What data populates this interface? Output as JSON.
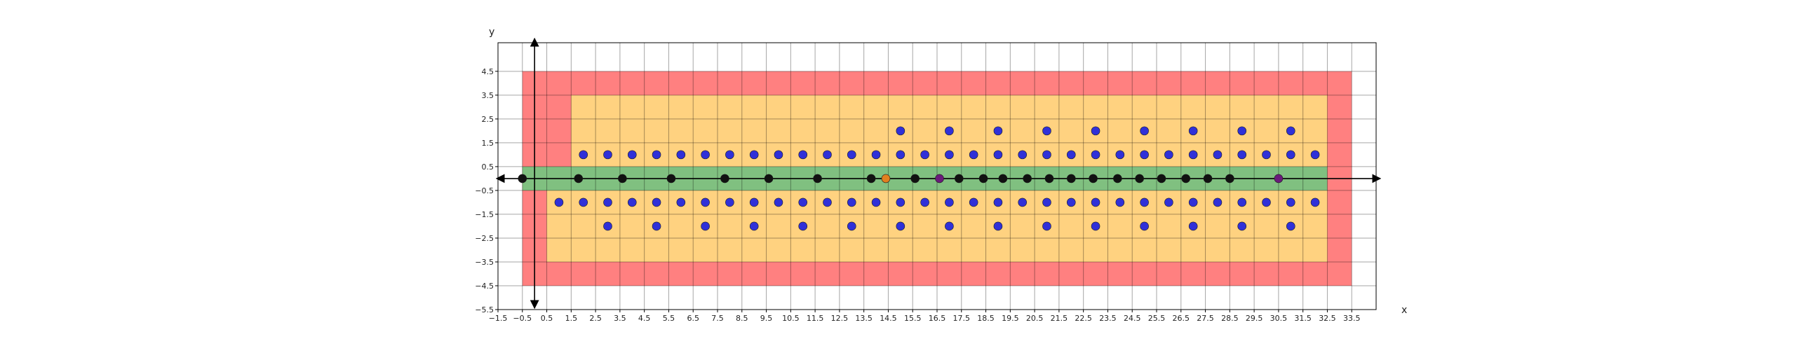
{
  "chart_data": {
    "type": "scatter",
    "title": "",
    "xlabel": "x",
    "ylabel": "y",
    "xlim": [
      -1.5,
      34.5
    ],
    "ylim": [
      -5.5,
      5.7
    ],
    "grid": true,
    "x_ticks": [
      "-1.5",
      "-0.5",
      "0.5",
      "1.5",
      "2.5",
      "3.5",
      "4.5",
      "5.5",
      "6.5",
      "7.5",
      "8.5",
      "9.5",
      "10.5",
      "11.5",
      "12.5",
      "13.5",
      "14.5",
      "15.5",
      "16.5",
      "17.5",
      "18.5",
      "19.5",
      "20.5",
      "21.5",
      "22.5",
      "23.5",
      "24.5",
      "25.5",
      "26.5",
      "27.5",
      "28.5",
      "29.5",
      "30.5",
      "31.5",
      "32.5",
      "33.5"
    ],
    "y_ticks": [
      "4.5",
      "3.5",
      "2.5",
      "1.5",
      "0.5",
      "-0.5",
      "-1.5",
      "-2.5",
      "-3.5",
      "-4.5",
      "-5.5"
    ],
    "regions": [
      {
        "color": "#ff8080",
        "x": [
          -0.5,
          33.5
        ],
        "y": [
          -4.5,
          4.5
        ]
      },
      {
        "color": "#ffd280",
        "x": [
          1.5,
          32.5
        ],
        "y": [
          0.5,
          3.5
        ]
      },
      {
        "color": "#ffd280",
        "x": [
          0.5,
          32.5
        ],
        "y": [
          -3.5,
          -0.5
        ]
      },
      {
        "color": "#80c080",
        "x": [
          -0.5,
          32.5
        ],
        "y": [
          -0.5,
          0.5
        ]
      }
    ],
    "series": [
      {
        "color": "#3030d8",
        "points": [
          [
            2,
            1
          ],
          [
            3,
            1
          ],
          [
            4,
            1
          ],
          [
            5,
            1
          ],
          [
            6,
            1
          ],
          [
            7,
            1
          ],
          [
            8,
            1
          ],
          [
            9,
            1
          ],
          [
            10,
            1
          ],
          [
            11,
            1
          ],
          [
            12,
            1
          ],
          [
            13,
            1
          ],
          [
            14,
            1
          ],
          [
            15,
            1
          ],
          [
            16,
            1
          ],
          [
            17,
            1
          ],
          [
            18,
            1
          ],
          [
            19,
            1
          ],
          [
            20,
            1
          ],
          [
            21,
            1
          ],
          [
            22,
            1
          ],
          [
            23,
            1
          ],
          [
            24,
            1
          ],
          [
            25,
            1
          ],
          [
            26,
            1
          ],
          [
            27,
            1
          ],
          [
            28,
            1
          ],
          [
            29,
            1
          ],
          [
            30,
            1
          ],
          [
            31,
            1
          ],
          [
            32,
            1
          ],
          [
            15,
            2
          ],
          [
            17,
            2
          ],
          [
            19,
            2
          ],
          [
            21,
            2
          ],
          [
            23,
            2
          ],
          [
            25,
            2
          ],
          [
            27,
            2
          ],
          [
            29,
            2
          ],
          [
            31,
            2
          ],
          [
            1,
            -1
          ],
          [
            2,
            -1
          ],
          [
            3,
            -1
          ],
          [
            4,
            -1
          ],
          [
            5,
            -1
          ],
          [
            6,
            -1
          ],
          [
            7,
            -1
          ],
          [
            8,
            -1
          ],
          [
            9,
            -1
          ],
          [
            10,
            -1
          ],
          [
            11,
            -1
          ],
          [
            12,
            -1
          ],
          [
            13,
            -1
          ],
          [
            14,
            -1
          ],
          [
            15,
            -1
          ],
          [
            16,
            -1
          ],
          [
            17,
            -1
          ],
          [
            18,
            -1
          ],
          [
            19,
            -1
          ],
          [
            20,
            -1
          ],
          [
            21,
            -1
          ],
          [
            22,
            -1
          ],
          [
            23,
            -1
          ],
          [
            24,
            -1
          ],
          [
            25,
            -1
          ],
          [
            26,
            -1
          ],
          [
            27,
            -1
          ],
          [
            28,
            -1
          ],
          [
            29,
            -1
          ],
          [
            30,
            -1
          ],
          [
            31,
            -1
          ],
          [
            32,
            -1
          ],
          [
            3,
            -2
          ],
          [
            5,
            -2
          ],
          [
            7,
            -2
          ],
          [
            9,
            -2
          ],
          [
            11,
            -2
          ],
          [
            13,
            -2
          ],
          [
            15,
            -2
          ],
          [
            17,
            -2
          ],
          [
            19,
            -2
          ],
          [
            21,
            -2
          ],
          [
            23,
            -2
          ],
          [
            25,
            -2
          ],
          [
            27,
            -2
          ],
          [
            29,
            -2
          ],
          [
            31,
            -2
          ]
        ]
      },
      {
        "color": "#111111",
        "points": [
          [
            -0.5,
            0
          ],
          [
            1.8,
            0
          ],
          [
            3.6,
            0
          ],
          [
            5.6,
            0
          ],
          [
            7.8,
            0
          ],
          [
            9.6,
            0
          ],
          [
            11.6,
            0
          ],
          [
            13.8,
            0
          ],
          [
            15.6,
            0
          ],
          [
            17.4,
            0
          ],
          [
            18.4,
            0
          ],
          [
            19.2,
            0
          ],
          [
            20.2,
            0
          ],
          [
            21.1,
            0
          ],
          [
            22.0,
            0
          ],
          [
            22.9,
            0
          ],
          [
            23.9,
            0
          ],
          [
            24.8,
            0
          ],
          [
            25.7,
            0
          ],
          [
            26.7,
            0
          ],
          [
            27.6,
            0
          ],
          [
            28.5,
            0
          ]
        ]
      },
      {
        "color": "#6a1a7a",
        "points": [
          [
            16.6,
            0
          ],
          [
            30.5,
            0
          ]
        ]
      },
      {
        "color": "#e08020",
        "points": [
          [
            14.4,
            0
          ]
        ]
      }
    ]
  }
}
